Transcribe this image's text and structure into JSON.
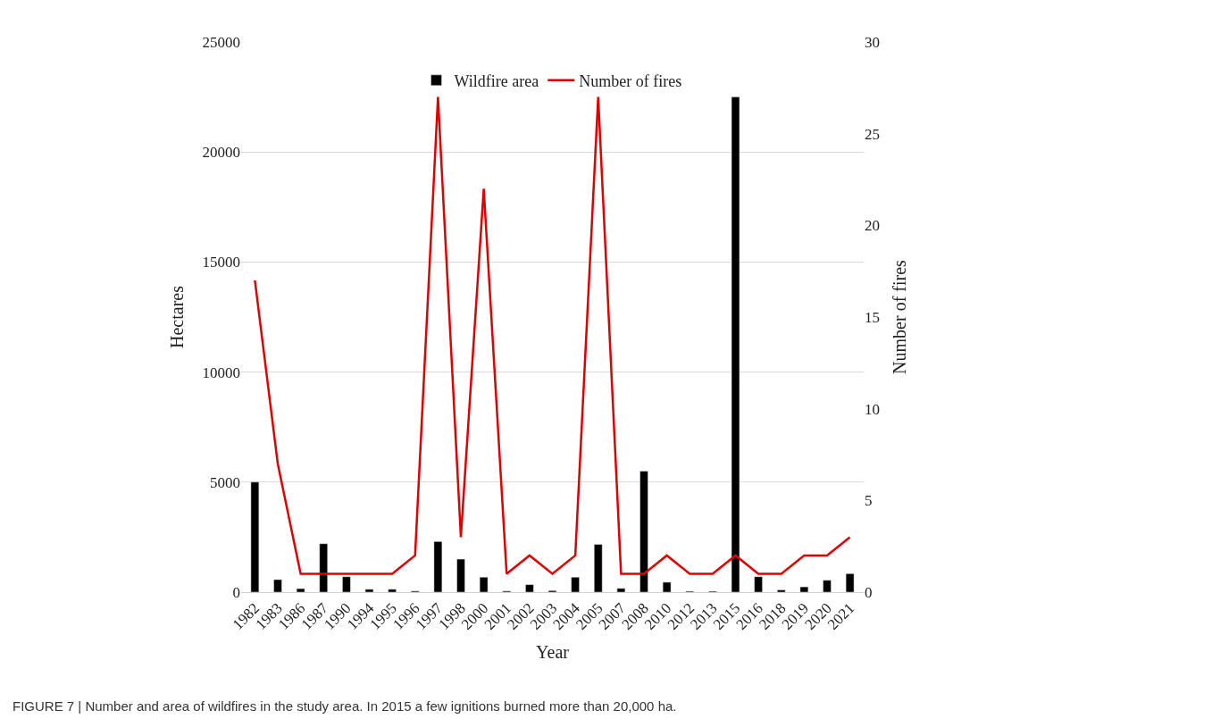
{
  "chart_data": {
    "type": "bar",
    "categories": [
      "1982",
      "1983",
      "1986",
      "1987",
      "1990",
      "1994",
      "1995",
      "1996",
      "1997",
      "1998",
      "2000",
      "2001",
      "2002",
      "2003",
      "2004",
      "2005",
      "2007",
      "2008",
      "2010",
      "2012",
      "2013",
      "2015",
      "2016",
      "2018",
      "2019",
      "2020",
      "2021"
    ],
    "series": [
      {
        "name": "Wildfire area",
        "color": "#000000",
        "values": [
          5000,
          570,
          160,
          2200,
          700,
          130,
          130,
          50,
          2300,
          1500,
          680,
          50,
          340,
          70,
          680,
          2170,
          170,
          5500,
          450,
          40,
          40,
          22500,
          700,
          100,
          240,
          540,
          840
        ]
      },
      {
        "name": "Number of fires",
        "type": "line",
        "axis": "y2",
        "color": "#e00000",
        "values": [
          17,
          7,
          1,
          1,
          1,
          1,
          1,
          2,
          27,
          3,
          22,
          1,
          2,
          1,
          2,
          27,
          1,
          1,
          2,
          1,
          1,
          2,
          1,
          1,
          2,
          2,
          3
        ]
      }
    ],
    "xlabel": "Year",
    "ylabel": "Hectares",
    "y2label": "Number of fires",
    "ylim": [
      0,
      25000
    ],
    "yticks": [
      0,
      5000,
      10000,
      15000,
      20000,
      25000
    ],
    "y2lim": [
      0,
      30
    ],
    "y2ticks": [
      0,
      5,
      10,
      15,
      20,
      25,
      30
    ],
    "grid": "y",
    "legend": "top",
    "annotations": [
      "FIGURE 7 | Number and area of wildfires in the study area. In 2015 a few ignitions burned more than 20,000 ha."
    ]
  }
}
